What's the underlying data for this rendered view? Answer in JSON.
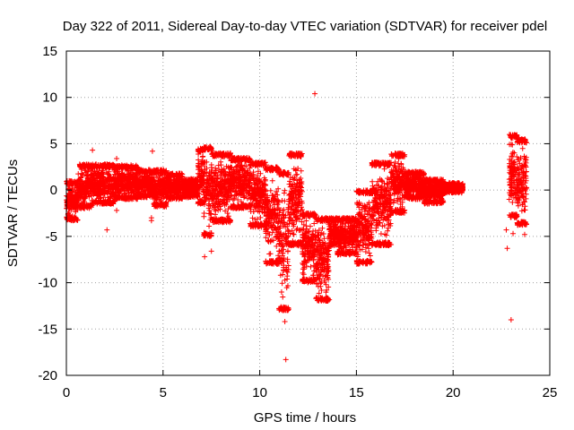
{
  "chart_data": {
    "type": "scatter",
    "title": "Day 322 of 2011, Sidereal Day-to-day VTEC variation (SDTVAR) for receiver pdel",
    "xlabel": "GPS time / hours",
    "ylabel": "SDTVAR / TECUs",
    "xlim": [
      0,
      25
    ],
    "ylim": [
      -20,
      15
    ],
    "xticks": [
      0,
      5,
      10,
      15,
      20,
      25
    ],
    "yticks": [
      -20,
      -15,
      -10,
      -5,
      0,
      5,
      10,
      15
    ],
    "grid": true,
    "marker": "+",
    "color": "#ff0000",
    "bands": [
      {
        "x0": 0.0,
        "x1": 0.6,
        "lo": -3.3,
        "hi": 1.0
      },
      {
        "x0": 0.6,
        "x1": 1.3,
        "lo": -2.0,
        "hi": 2.8
      },
      {
        "x0": 1.3,
        "x1": 2.5,
        "lo": -1.5,
        "hi": 2.8
      },
      {
        "x0": 2.5,
        "x1": 3.7,
        "lo": -1.0,
        "hi": 2.7
      },
      {
        "x0": 3.7,
        "x1": 4.5,
        "lo": -0.8,
        "hi": 2.2
      },
      {
        "x0": 4.5,
        "x1": 5.2,
        "lo": -1.8,
        "hi": 2.2
      },
      {
        "x0": 5.2,
        "x1": 6.0,
        "lo": -1.0,
        "hi": 1.8
      },
      {
        "x0": 6.0,
        "x1": 6.8,
        "lo": -0.8,
        "hi": 1.2
      },
      {
        "x0": 6.8,
        "x1": 7.1,
        "lo": -1.5,
        "hi": 4.5
      },
      {
        "x0": 7.1,
        "x1": 7.5,
        "lo": -5.0,
        "hi": 4.7
      },
      {
        "x0": 7.5,
        "x1": 8.5,
        "lo": -3.5,
        "hi": 4.0
      },
      {
        "x0": 8.5,
        "x1": 9.5,
        "lo": -2.0,
        "hi": 3.5
      },
      {
        "x0": 9.5,
        "x1": 10.3,
        "lo": -4.0,
        "hi": 3.0
      },
      {
        "x0": 10.3,
        "x1": 11.0,
        "lo": -8.0,
        "hi": 2.5
      },
      {
        "x0": 11.0,
        "x1": 11.5,
        "lo": -13.0,
        "hi": 2.0
      },
      {
        "x0": 11.5,
        "x1": 12.2,
        "lo": -6.0,
        "hi": 4.0
      },
      {
        "x0": 12.2,
        "x1": 12.9,
        "lo": -10.0,
        "hi": -2.5
      },
      {
        "x0": 12.9,
        "x1": 13.6,
        "lo": -12.0,
        "hi": -3.0
      },
      {
        "x0": 13.6,
        "x1": 14.0,
        "lo": -6.0,
        "hi": -3.0
      },
      {
        "x0": 14.0,
        "x1": 15.0,
        "lo": -7.0,
        "hi": -3.0
      },
      {
        "x0": 15.0,
        "x1": 15.8,
        "lo": -8.0,
        "hi": 0.0
      },
      {
        "x0": 15.8,
        "x1": 16.8,
        "lo": -6.0,
        "hi": 3.0
      },
      {
        "x0": 16.8,
        "x1": 17.5,
        "lo": -2.5,
        "hi": 4.0
      },
      {
        "x0": 17.5,
        "x1": 18.5,
        "lo": -1.0,
        "hi": 2.0
      },
      {
        "x0": 18.5,
        "x1": 19.5,
        "lo": -1.5,
        "hi": 1.2
      },
      {
        "x0": 19.5,
        "x1": 20.5,
        "lo": -0.3,
        "hi": 0.8
      },
      {
        "x0": 22.9,
        "x1": 23.3,
        "lo": -3.0,
        "hi": 6.0
      },
      {
        "x0": 23.3,
        "x1": 23.8,
        "lo": -3.8,
        "hi": 5.5
      }
    ],
    "outliers": [
      {
        "x": 1.35,
        "y": 4.3
      },
      {
        "x": 2.1,
        "y": -4.3
      },
      {
        "x": 2.6,
        "y": 3.4
      },
      {
        "x": 2.6,
        "y": -2.2
      },
      {
        "x": 4.45,
        "y": 4.2
      },
      {
        "x": 4.4,
        "y": -3.0
      },
      {
        "x": 4.4,
        "y": -3.3
      },
      {
        "x": 7.15,
        "y": -7.2
      },
      {
        "x": 7.5,
        "y": -6.6
      },
      {
        "x": 11.35,
        "y": -18.3
      },
      {
        "x": 11.3,
        "y": -14.2
      },
      {
        "x": 12.85,
        "y": 10.4
      },
      {
        "x": 22.8,
        "y": -6.3
      },
      {
        "x": 22.75,
        "y": -4.3
      },
      {
        "x": 23.0,
        "y": -14.0
      },
      {
        "x": 23.1,
        "y": -4.7
      },
      {
        "x": 23.7,
        "y": -4.8
      },
      {
        "x": 22.9,
        "y": -1.0
      }
    ],
    "density_per_hour": 220,
    "seed": 322
  }
}
